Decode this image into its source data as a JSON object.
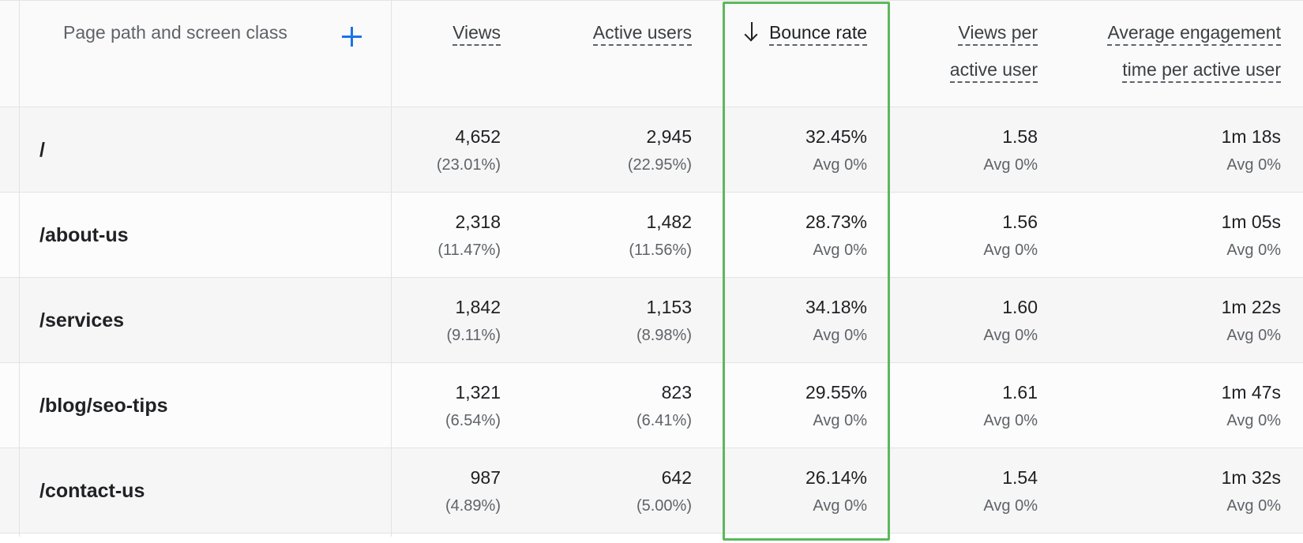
{
  "header": {
    "page_path": "Page path and screen class",
    "add_dimension_icon": "plus-icon",
    "views": "Views",
    "active_users": "Active users",
    "bounce_rate": "Bounce rate",
    "sort_icon": "arrow-down-icon",
    "views_per_active_user_line1": "Views per",
    "views_per_active_user_line2": "active user",
    "avg_engagement_line1": "Average engagement",
    "avg_engagement_line2": "time per active user"
  },
  "highlight_color": "#5cb85c",
  "accent_color": "#1a73e8",
  "rows": [
    {
      "page": "/",
      "views": "4,652",
      "views_share": "(23.01%)",
      "active_users": "2,945",
      "active_users_share": "(22.95%)",
      "bounce_rate": "32.45%",
      "bounce_rate_avg": "Avg 0%",
      "views_per_user": "1.58",
      "views_per_user_avg": "Avg 0%",
      "engagement": "1m 18s",
      "engagement_avg": "Avg 0%"
    },
    {
      "page": "/about-us",
      "views": "2,318",
      "views_share": "(11.47%)",
      "active_users": "1,482",
      "active_users_share": "(11.56%)",
      "bounce_rate": "28.73%",
      "bounce_rate_avg": "Avg 0%",
      "views_per_user": "1.56",
      "views_per_user_avg": "Avg 0%",
      "engagement": "1m 05s",
      "engagement_avg": "Avg 0%"
    },
    {
      "page": "/services",
      "views": "1,842",
      "views_share": "(9.11%)",
      "active_users": "1,153",
      "active_users_share": "(8.98%)",
      "bounce_rate": "34.18%",
      "bounce_rate_avg": "Avg 0%",
      "views_per_user": "1.60",
      "views_per_user_avg": "Avg 0%",
      "engagement": "1m 22s",
      "engagement_avg": "Avg 0%"
    },
    {
      "page": "/blog/seo-tips",
      "views": "1,321",
      "views_share": "(6.54%)",
      "active_users": "823",
      "active_users_share": "(6.41%)",
      "bounce_rate": "29.55%",
      "bounce_rate_avg": "Avg 0%",
      "views_per_user": "1.61",
      "views_per_user_avg": "Avg 0%",
      "engagement": "1m 47s",
      "engagement_avg": "Avg 0%"
    },
    {
      "page": "/contact-us",
      "views": "987",
      "views_share": "(4.89%)",
      "active_users": "642",
      "active_users_share": "(5.00%)",
      "bounce_rate": "26.14%",
      "bounce_rate_avg": "Avg 0%",
      "views_per_user": "1.54",
      "views_per_user_avg": "Avg 0%",
      "engagement": "1m 32s",
      "engagement_avg": "Avg 0%"
    }
  ]
}
